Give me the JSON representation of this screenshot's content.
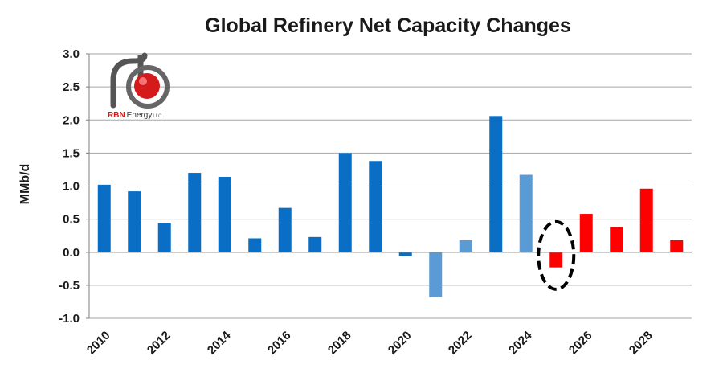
{
  "logo": {
    "text_brand": "RBN",
    "text_name": "Energy",
    "text_suffix": "LLC",
    "brand_color": "#d41a1a",
    "pipe_color": "#555555"
  },
  "highlight": {
    "category": "2025",
    "style": "dashed-ellipse"
  },
  "colors": {
    "historical": "#0a6fc4",
    "recent": "#5b9bd5",
    "forecast": "#ff0000",
    "gridline": "#a6a6a6",
    "axis": "#7f7f7f"
  },
  "chart_data": {
    "type": "bar",
    "title": "Global Refinery Net Capacity Changes",
    "xlabel": "",
    "ylabel": "MMb/d",
    "ylim": [
      -1.0,
      3.0
    ],
    "yticks": [
      "-1.0",
      "-0.5",
      "0.0",
      "0.5",
      "1.0",
      "1.5",
      "2.0",
      "2.5",
      "3.0"
    ],
    "grid": true,
    "legend": "none",
    "categories": [
      "2010",
      "2011",
      "2012",
      "2013",
      "2014",
      "2015",
      "2016",
      "2017",
      "2018",
      "2019",
      "2020",
      "2021",
      "2022",
      "2023",
      "2024",
      "2025",
      "2026",
      "2027",
      "2028",
      "2029"
    ],
    "x_tick_labels": [
      "2010",
      "2012",
      "2014",
      "2016",
      "2018",
      "2020",
      "2022",
      "2024",
      "2026",
      "2028"
    ],
    "values": [
      1.02,
      0.92,
      0.44,
      1.2,
      1.14,
      0.21,
      0.67,
      0.23,
      1.5,
      1.38,
      -0.06,
      -0.68,
      0.18,
      2.06,
      1.17,
      -0.23,
      0.58,
      0.38,
      0.96,
      0.18
    ],
    "bar_colors": [
      "#0a6fc4",
      "#0a6fc4",
      "#0a6fc4",
      "#0a6fc4",
      "#0a6fc4",
      "#0a6fc4",
      "#0a6fc4",
      "#0a6fc4",
      "#0a6fc4",
      "#0a6fc4",
      "#0a6fc4",
      "#5b9bd5",
      "#5b9bd5",
      "#0a6fc4",
      "#5b9bd5",
      "#ff0000",
      "#ff0000",
      "#ff0000",
      "#ff0000",
      "#ff0000"
    ]
  }
}
